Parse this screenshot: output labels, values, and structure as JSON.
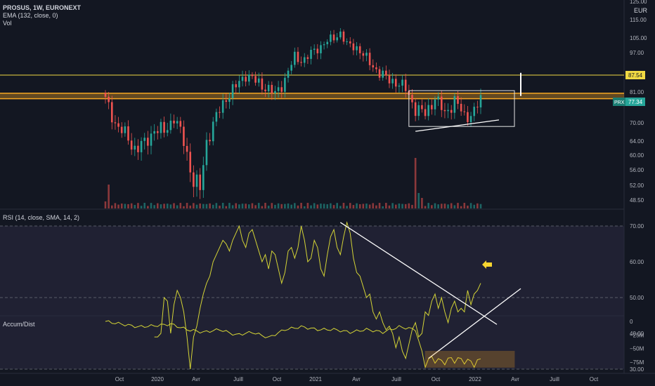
{
  "header": {
    "symbol": "PROSUS, 1W, EURONEXT",
    "ema_label": "EMA (132, close, 0)",
    "vol_label": "Vol",
    "currency": "EUR"
  },
  "price_axis": {
    "ticks": [
      "125.00",
      "115.00",
      "105.00",
      "97.00",
      "87.54",
      "81.00",
      "77.34",
      "70.00",
      "64.00",
      "60.00",
      "56.00",
      "52.00",
      "48.50"
    ],
    "prx_label": "PRX",
    "current_price": "77.34",
    "resistance_label": "87.54"
  },
  "rsi_panel": {
    "label": "RSI (14, close, SMA, 14, 2)",
    "ticks": [
      "70.00",
      "60.00",
      "50.00",
      "40.00",
      "30.00"
    ]
  },
  "ad_panel": {
    "label": "Accum/Dist",
    "ticks": [
      "0",
      "−25M",
      "−50M",
      "−75M"
    ]
  },
  "time_axis": {
    "labels": [
      "Oct",
      "2020",
      "Avr",
      "Juill",
      "Oct",
      "2021",
      "Avr",
      "Juill",
      "Oct",
      "2022",
      "Avr",
      "Juill",
      "Oct"
    ]
  },
  "colors": {
    "background": "#131722",
    "up": "#26a69a",
    "down": "#ef5350",
    "resistance": "#f0d943",
    "zone": "#f5a623",
    "rsi": "#d4d436",
    "rsi_band": "#2a2840",
    "trendline": "#ffffff",
    "arrow": "#f7d530"
  },
  "chart_data": [
    {
      "type": "candlestick",
      "name": "PROSUS weekly",
      "xlabels": [
        "Oct",
        "2020",
        "Avr",
        "Juill",
        "Oct",
        "2021",
        "Avr",
        "Juill",
        "Oct",
        "2022",
        "Avr",
        "Juill",
        "Oct"
      ],
      "ticks": [
        125,
        115,
        105,
        97,
        87.54,
        81,
        77.34,
        70,
        64,
        60,
        56,
        52,
        48.5
      ],
      "path_anchors": [
        [
          0,
          78
        ],
        [
          3,
          70
        ],
        [
          6,
          66
        ],
        [
          9,
          62
        ],
        [
          12,
          63
        ],
        [
          15,
          68
        ],
        [
          18,
          67
        ],
        [
          21,
          72
        ],
        [
          24,
          64
        ],
        [
          27,
          53
        ],
        [
          29,
          51
        ],
        [
          31,
          64
        ],
        [
          34,
          72
        ],
        [
          37,
          79
        ],
        [
          40,
          83
        ],
        [
          43,
          88
        ],
        [
          46,
          85
        ],
        [
          49,
          83
        ],
        [
          52,
          80
        ],
        [
          55,
          86
        ],
        [
          58,
          95
        ],
        [
          61,
          94
        ],
        [
          64,
          98
        ],
        [
          67,
          102
        ],
        [
          70,
          105
        ],
        [
          72,
          108
        ],
        [
          74,
          101
        ],
        [
          77,
          100
        ],
        [
          80,
          94
        ],
        [
          83,
          90
        ],
        [
          86,
          86
        ],
        [
          89,
          85
        ],
        [
          92,
          82
        ],
        [
          95,
          75
        ],
        [
          98,
          73
        ],
        [
          101,
          79
        ],
        [
          104,
          73
        ],
        [
          107,
          78
        ],
        [
          110,
          72
        ],
        [
          113,
          74
        ],
        [
          115,
          78
        ]
      ],
      "resistance": 87.54,
      "support_zone": [
        78.5,
        80.5
      ],
      "current_price": 77.34
    },
    {
      "type": "line",
      "name": "RSI (14, close, SMA, 14, 2)",
      "ticks": [
        70,
        60,
        50,
        40,
        30
      ],
      "bands": [
        30,
        50,
        70
      ],
      "x": [
        15,
        16,
        17,
        18,
        19,
        20,
        21,
        22,
        23,
        24,
        25,
        26,
        27,
        28,
        29,
        30,
        31,
        32,
        33,
        34,
        35,
        36,
        37,
        38,
        39,
        40,
        41,
        42,
        43,
        44,
        45,
        46,
        47,
        48,
        49,
        50,
        51,
        52,
        53,
        54,
        55,
        56,
        57,
        58,
        59,
        60,
        61,
        62,
        63,
        64,
        65,
        66,
        67,
        68,
        69,
        70,
        71,
        72,
        73,
        74,
        75,
        76,
        77,
        78,
        79,
        80,
        81,
        82,
        83,
        84,
        85,
        86,
        87,
        88,
        89,
        90,
        91,
        92,
        93,
        94,
        95,
        96,
        97,
        98,
        99,
        100,
        101,
        102,
        103,
        104,
        105,
        106,
        107,
        108,
        109,
        110,
        111,
        112,
        113,
        114,
        115
      ],
      "values": [
        39,
        39,
        40,
        50,
        49,
        40,
        48,
        52,
        50,
        46,
        39,
        30,
        39,
        42,
        47,
        51,
        54,
        56,
        60,
        62,
        64,
        66,
        65,
        63,
        66,
        68,
        70,
        66,
        64,
        68,
        69,
        66,
        63,
        60,
        62,
        58,
        63,
        62,
        58,
        54,
        57,
        63,
        64,
        61,
        64,
        70,
        66,
        60,
        61,
        66,
        64,
        58,
        56,
        62,
        67,
        69,
        64,
        62,
        67,
        71,
        68,
        61,
        57,
        56,
        53,
        50,
        51,
        46,
        44,
        46,
        43,
        41,
        42,
        40,
        36,
        39,
        35,
        33,
        37,
        41,
        43,
        39,
        40,
        46,
        45,
        49,
        51,
        47,
        50,
        46,
        43,
        47,
        49,
        46,
        47,
        46,
        52,
        48,
        51,
        52,
        54
      ]
    },
    {
      "type": "line",
      "name": "Accum/Dist",
      "ticks": [
        0,
        -25,
        -50,
        -75
      ],
      "unit": "M",
      "x": [
        0,
        5,
        10,
        15,
        20,
        25,
        30,
        35,
        40,
        45,
        50,
        55,
        60,
        65,
        70,
        75,
        80,
        85,
        90,
        95,
        98,
        100,
        103,
        106,
        110,
        113,
        115
      ],
      "values": [
        0,
        -5,
        -10,
        -8,
        -5,
        -15,
        -20,
        -15,
        -25,
        -20,
        -30,
        -15,
        -10,
        -15,
        -15,
        -20,
        -15,
        -20,
        -10,
        -15,
        -78,
        -68,
        -75,
        -70,
        -72,
        -78,
        -72
      ]
    }
  ]
}
